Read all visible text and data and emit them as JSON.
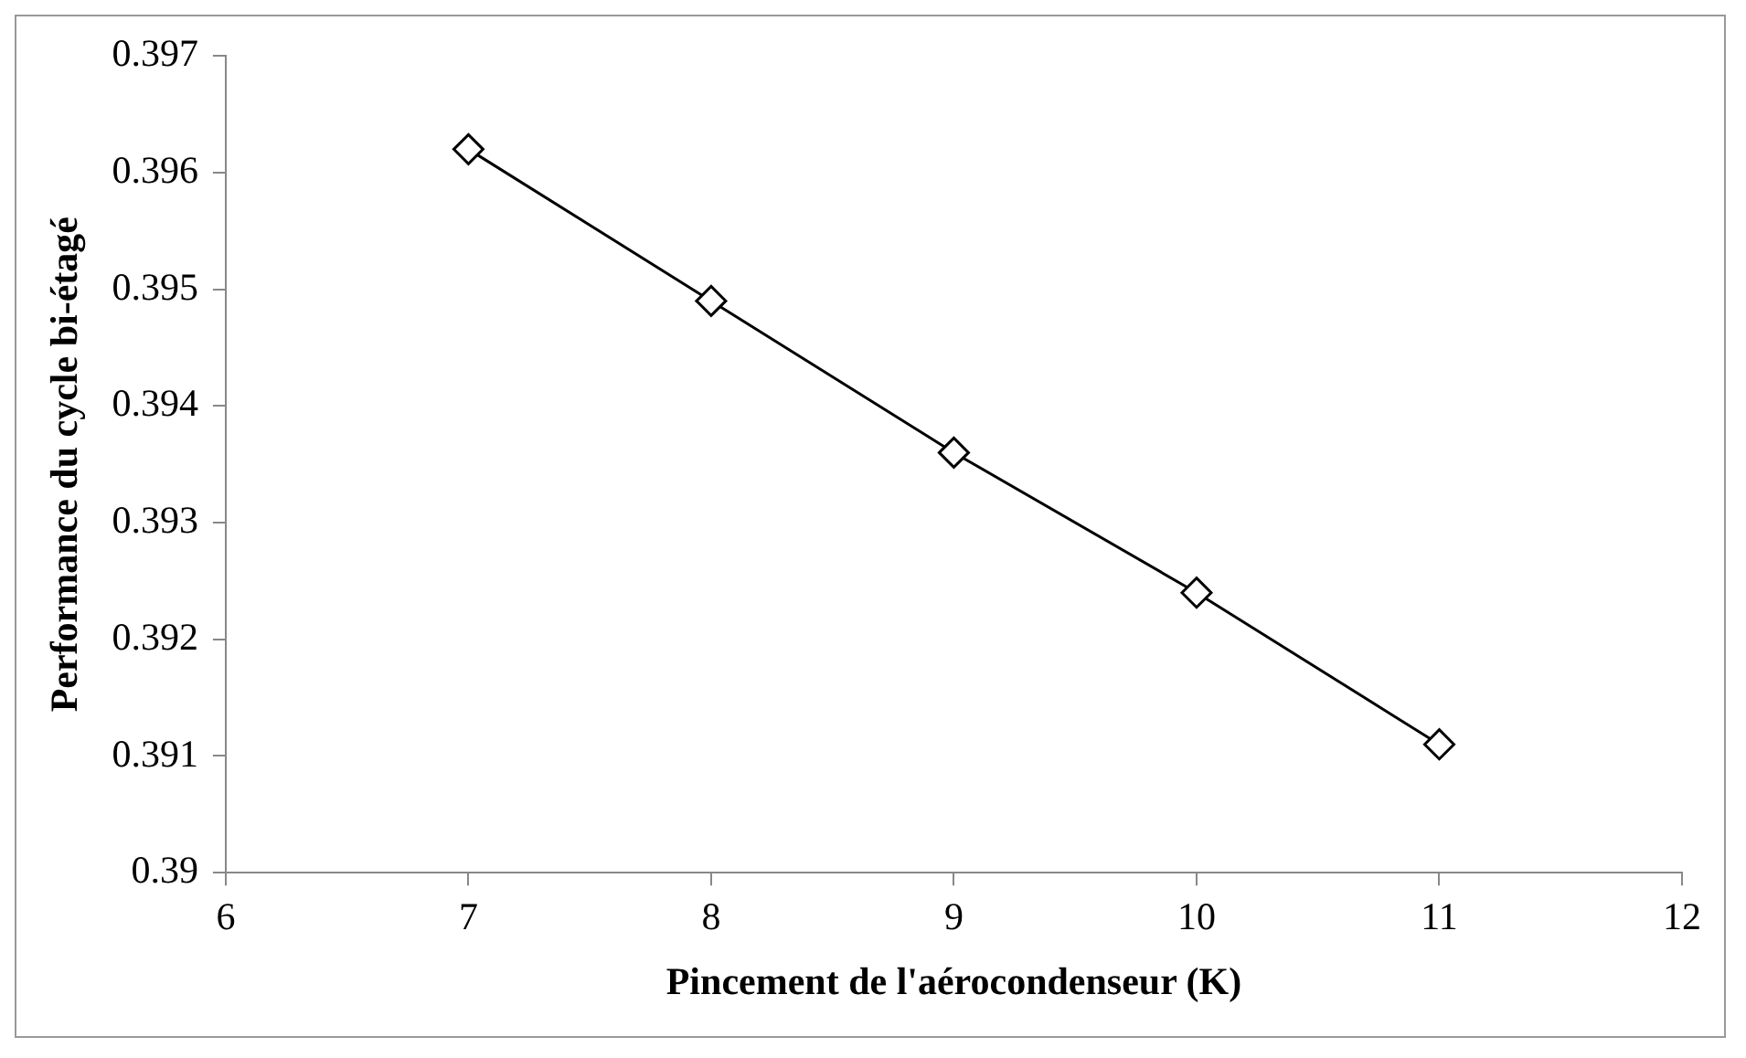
{
  "chart_data": {
    "type": "line",
    "xlabel": "Pincement de l'aérocondenseur (K)",
    "ylabel": "Performance du cycle bi-étagé",
    "x": [
      7,
      8,
      9,
      10,
      11
    ],
    "series": [
      {
        "color": "#000000",
        "values": [
          0.3962,
          0.3949,
          0.3936,
          0.3924,
          0.3911
        ]
      }
    ],
    "xlim": [
      6,
      12
    ],
    "xticks": [
      6,
      7,
      8,
      9,
      10,
      11,
      12
    ],
    "ylim": [
      0.39,
      0.397
    ],
    "yticks": [
      0.39,
      0.391,
      0.392,
      0.393,
      0.394,
      0.395,
      0.396,
      0.397
    ],
    "grid": false,
    "legend": false,
    "marker": "diamond",
    "line_style": "solid"
  }
}
